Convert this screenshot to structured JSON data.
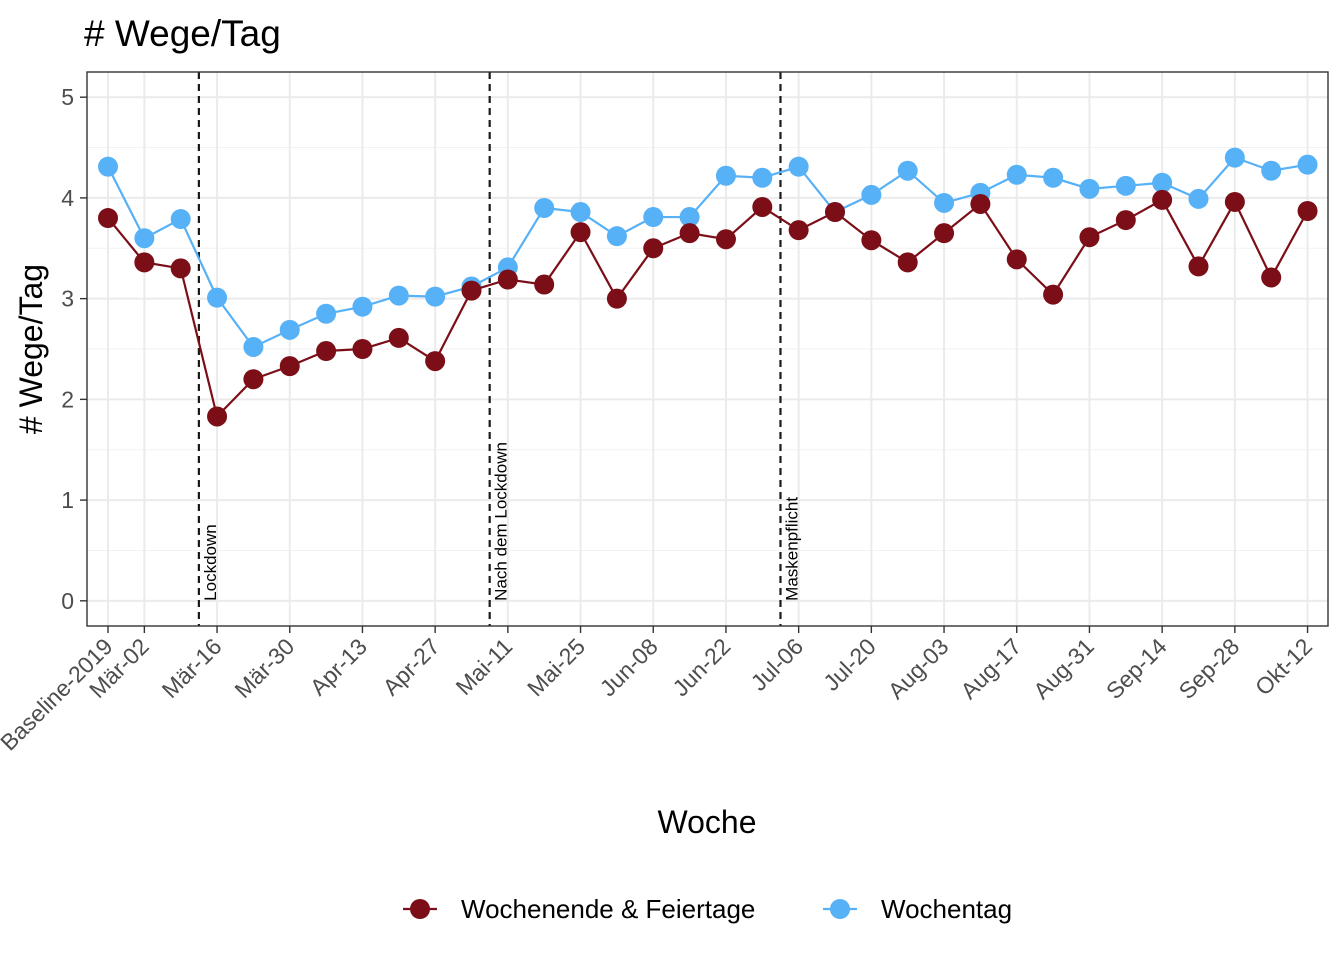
{
  "chart_data": {
    "type": "line",
    "title": "# Wege/Tag",
    "xlabel": "Woche",
    "ylabel": "# Wege/Tag",
    "ylim": [
      -0.25,
      5.25
    ],
    "yticks": [
      0,
      1,
      2,
      3,
      4,
      5
    ],
    "grid": true,
    "legend_position": "bottom",
    "x": [
      "Baseline-2019",
      "Mär-02",
      "Mär-09",
      "Mär-16",
      "Mär-23",
      "Mär-30",
      "Apr-06",
      "Apr-13",
      "Apr-20",
      "Apr-27",
      "Mai-04",
      "Mai-11",
      "Mai-18",
      "Mai-25",
      "Jun-01",
      "Jun-08",
      "Jun-15",
      "Jun-22",
      "Jun-29",
      "Jul-06",
      "Jul-13",
      "Jul-20",
      "Jul-27",
      "Aug-03",
      "Aug-10",
      "Aug-17",
      "Aug-24",
      "Aug-31",
      "Sep-07",
      "Sep-14",
      "Sep-21",
      "Sep-28",
      "Okt-05",
      "Okt-12"
    ],
    "xtick_labels": [
      "Baseline-2019",
      "Mär-02",
      "Mär-16",
      "Mär-30",
      "Apr-13",
      "Apr-27",
      "Mai-11",
      "Mai-25",
      "Jun-08",
      "Jun-22",
      "Jul-06",
      "Jul-20",
      "Aug-03",
      "Aug-17",
      "Aug-31",
      "Sep-14",
      "Sep-28",
      "Okt-12"
    ],
    "series": [
      {
        "name": "Wochenende & Feiertage",
        "color": "#7b0e17",
        "values": [
          3.8,
          3.36,
          3.3,
          1.83,
          2.2,
          2.33,
          2.48,
          2.5,
          2.61,
          2.38,
          3.08,
          3.19,
          3.14,
          3.66,
          3.0,
          3.5,
          3.65,
          3.59,
          3.91,
          3.68,
          3.86,
          3.58,
          3.36,
          3.65,
          3.94,
          3.39,
          3.04,
          3.61,
          3.78,
          3.98,
          3.32,
          3.96,
          3.21,
          3.87
        ]
      },
      {
        "name": "Wochentag",
        "color": "#56b1f7",
        "values": [
          4.31,
          3.6,
          3.79,
          3.01,
          2.52,
          2.69,
          2.85,
          2.92,
          3.03,
          3.02,
          3.12,
          3.31,
          3.9,
          3.86,
          3.62,
          3.81,
          3.81,
          4.22,
          4.2,
          4.31,
          3.86,
          4.03,
          4.27,
          3.95,
          4.05,
          4.23,
          4.2,
          4.09,
          4.12,
          4.15,
          3.99,
          4.4,
          4.27,
          4.33
        ]
      }
    ],
    "events": [
      {
        "label": "Lockdown",
        "x": 2.5
      },
      {
        "label": "Nach dem Lockdown",
        "x": 10.5
      },
      {
        "label": "Maskenpflicht",
        "x": 18.5
      }
    ]
  }
}
